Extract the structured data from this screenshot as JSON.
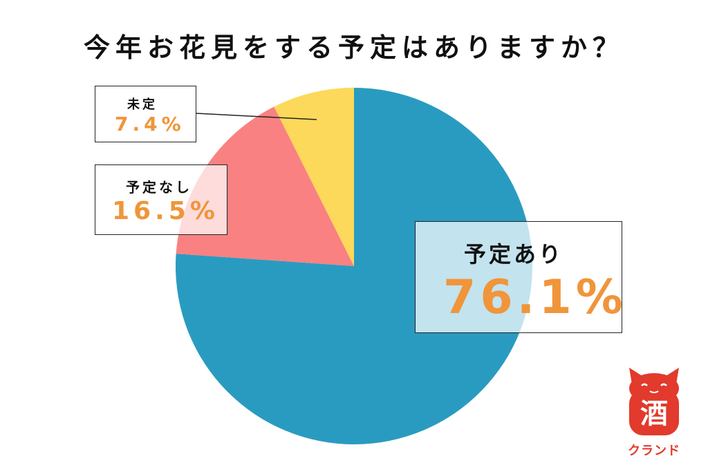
{
  "chart_data": {
    "type": "pie",
    "title": "今年お花見をする予定はありますか？",
    "categories": [
      "予定あり",
      "予定なし",
      "未定"
    ],
    "values": [
      76.1,
      16.5,
      7.4
    ],
    "value_labels": [
      "76.1%",
      "16.5%",
      "7.4%"
    ],
    "colors": [
      "#2a9bc0",
      "#fa8181",
      "#fcd95a"
    ],
    "start": "12 o'clock",
    "direction": "clockwise"
  },
  "logo": {
    "kanji": "酒",
    "text": "クランド",
    "color": "#e23a2c"
  }
}
